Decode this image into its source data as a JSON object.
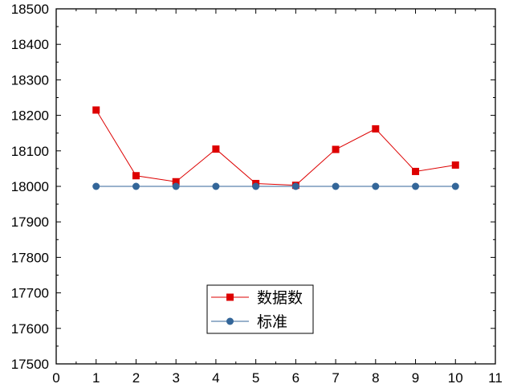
{
  "chart_data": {
    "type": "line",
    "x": [
      1,
      2,
      3,
      4,
      5,
      6,
      7,
      8,
      9,
      10
    ],
    "series": [
      {
        "name": "数据数",
        "values": [
          18215,
          18030,
          18013,
          18105,
          18008,
          18003,
          18104,
          18162,
          18042,
          18060
        ],
        "color": "#dd0000",
        "marker": "square"
      },
      {
        "name": "标准",
        "values": [
          18000,
          18000,
          18000,
          18000,
          18000,
          18000,
          18000,
          18000,
          18000,
          18000
        ],
        "color": "#336699",
        "marker": "circle"
      }
    ],
    "xlim": [
      0,
      11
    ],
    "ylim": [
      17500,
      18500
    ],
    "x_ticks": [
      "0",
      "1",
      "2",
      "3",
      "4",
      "5",
      "6",
      "7",
      "8",
      "9",
      "10",
      "11"
    ],
    "y_ticks": [
      "17500",
      "17600",
      "17700",
      "17800",
      "17900",
      "18000",
      "18100",
      "18200",
      "18300",
      "18400",
      "18500"
    ],
    "grid": false,
    "legend_position": "bottom-center"
  }
}
